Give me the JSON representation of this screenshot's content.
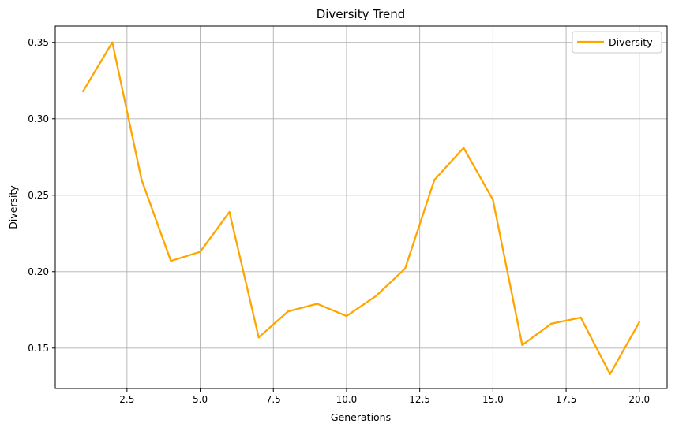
{
  "chart_data": {
    "type": "line",
    "title": "Diversity Trend",
    "xlabel": "Generations",
    "ylabel": "Diversity",
    "xlim": [
      0.05,
      20.95
    ],
    "ylim": [
      0.1236,
      0.3607
    ],
    "grid": true,
    "legend_position": "top-right",
    "x_ticks": [
      2.5,
      5.0,
      7.5,
      10.0,
      12.5,
      15.0,
      17.5,
      20.0
    ],
    "x_tick_labels": [
      "2.5",
      "5.0",
      "7.5",
      "10.0",
      "12.5",
      "15.0",
      "17.5",
      "20.0"
    ],
    "y_ticks": [
      0.15,
      0.2,
      0.25,
      0.3,
      0.35
    ],
    "y_tick_labels": [
      "0.15",
      "0.20",
      "0.25",
      "0.30",
      "0.35"
    ],
    "series": [
      {
        "name": "Diversity",
        "color": "#ffa500",
        "x": [
          1,
          2,
          3,
          4,
          5,
          6,
          7,
          8,
          9,
          10,
          11,
          12,
          13,
          14,
          15,
          16,
          17,
          18,
          19,
          20
        ],
        "y": [
          0.318,
          0.35,
          0.26,
          0.207,
          0.213,
          0.239,
          0.157,
          0.174,
          0.179,
          0.171,
          0.184,
          0.202,
          0.26,
          0.281,
          0.247,
          0.152,
          0.166,
          0.17,
          0.133,
          0.167
        ]
      }
    ]
  }
}
